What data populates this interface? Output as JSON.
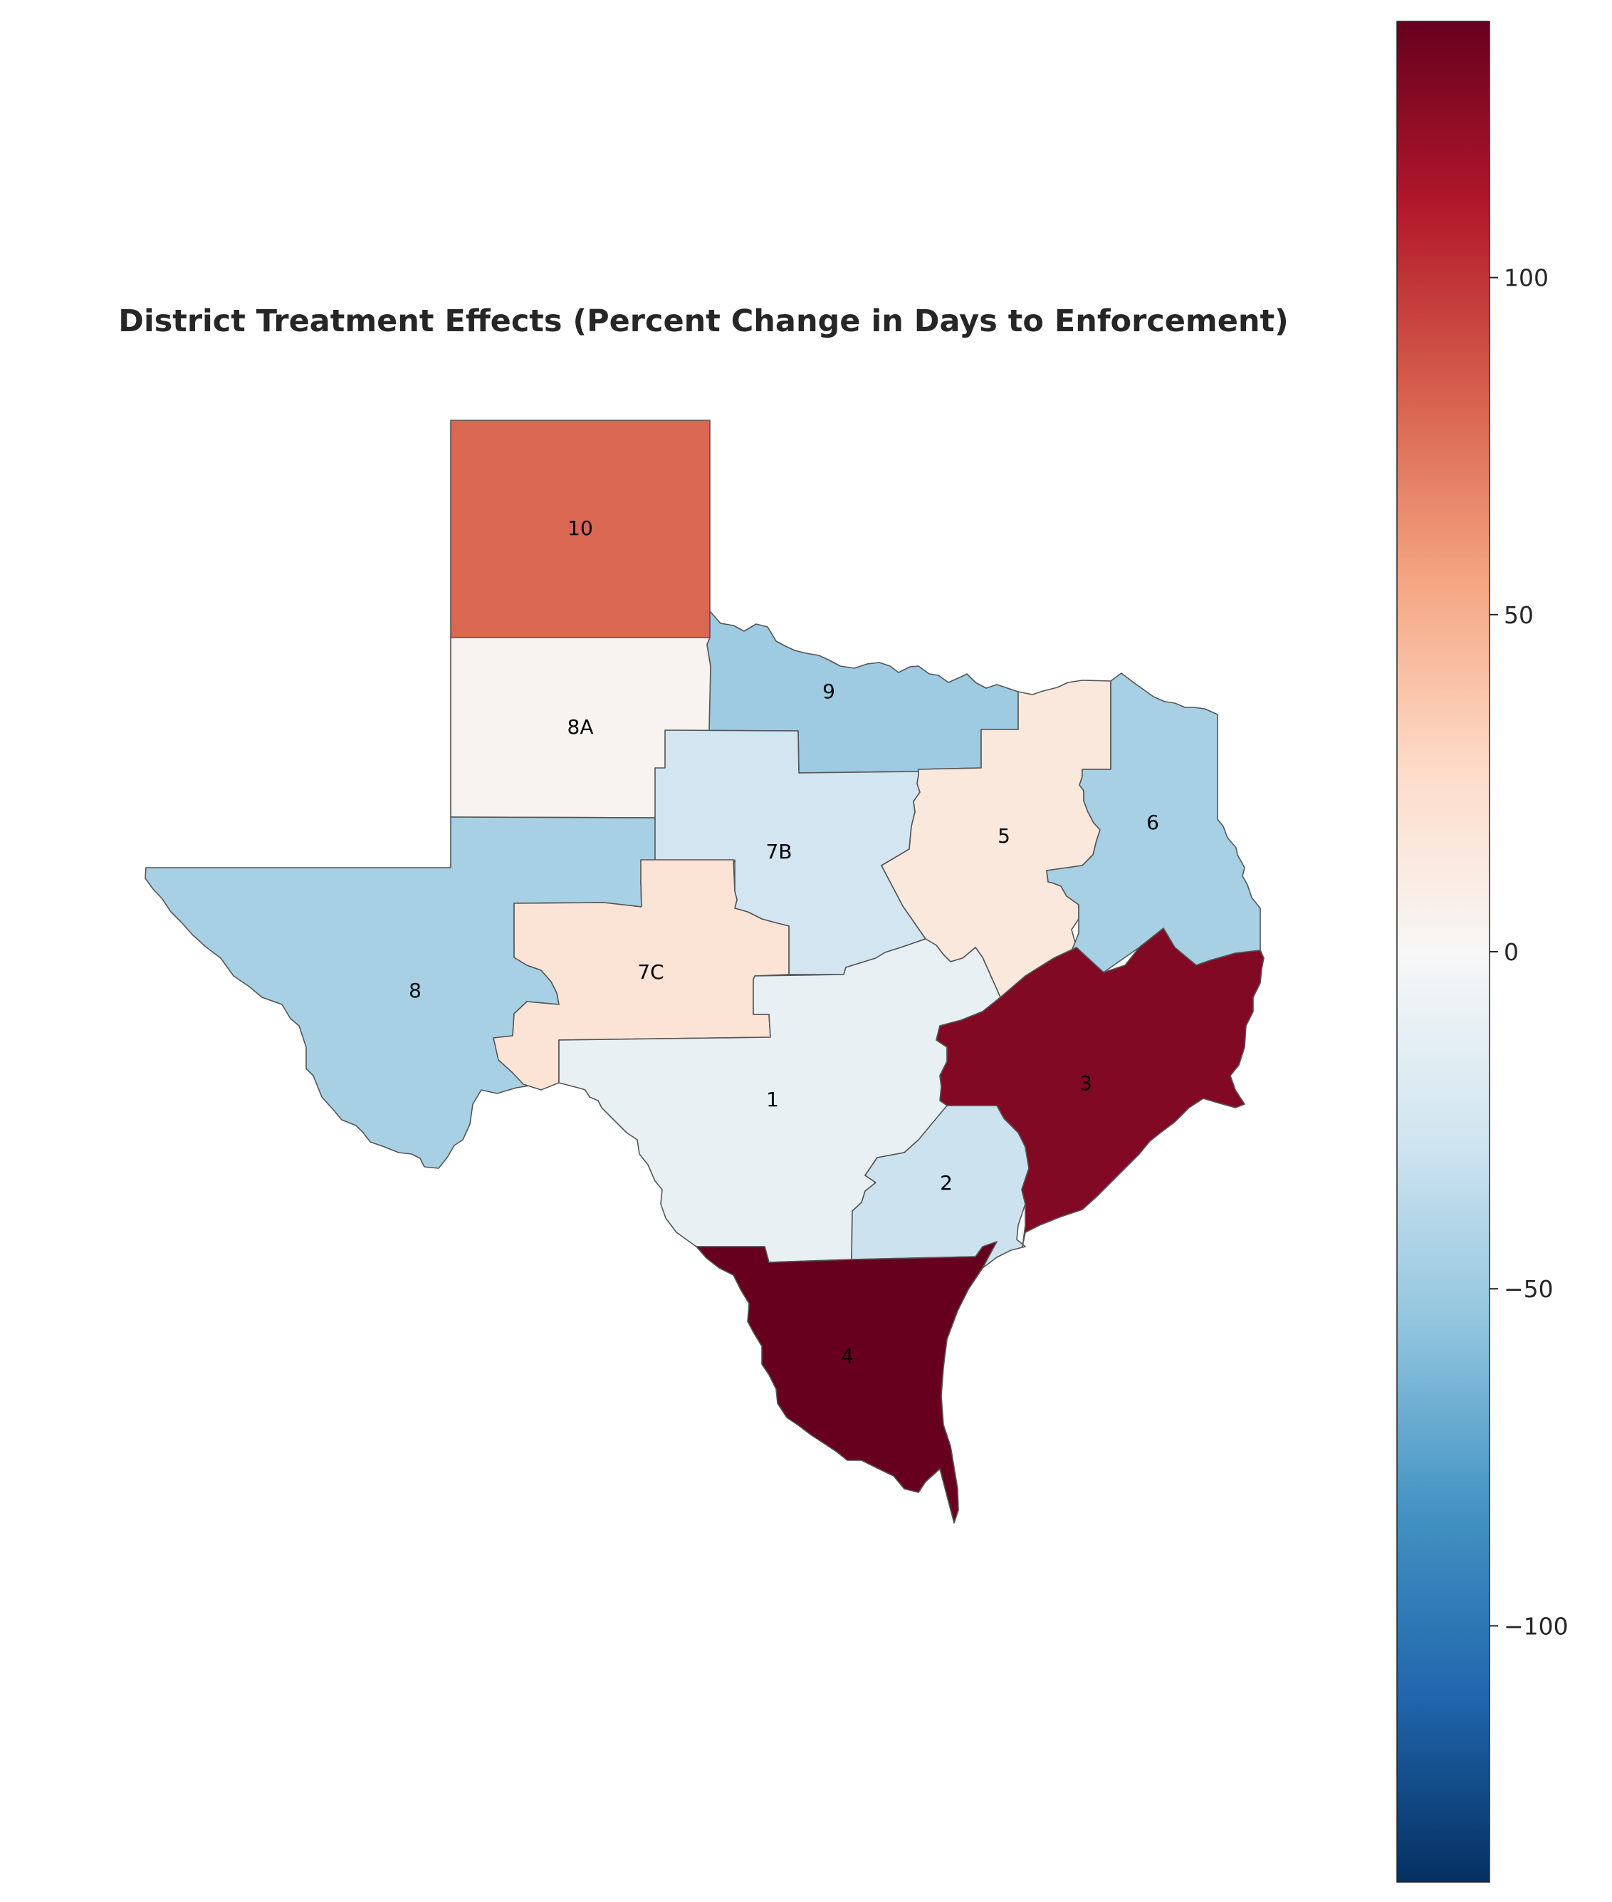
{
  "title": "District Treatment Effects (Percent Change in Days to Enforcement)",
  "colorbar": {
    "colormap": "RdBu_r",
    "min": -138,
    "max": 138,
    "ticks": [
      {
        "value": 100,
        "label": "100"
      },
      {
        "value": 50,
        "label": "50"
      },
      {
        "value": 0,
        "label": "0"
      },
      {
        "value": -50,
        "label": "−50"
      },
      {
        "value": -100,
        "label": "−100"
      }
    ]
  },
  "districts": [
    {
      "id": "10",
      "label": "10",
      "value": 80
    },
    {
      "id": "8A",
      "label": "8A",
      "value": 4
    },
    {
      "id": "9",
      "label": "9",
      "value": -50
    },
    {
      "id": "7B",
      "label": "7B",
      "value": -27
    },
    {
      "id": "5",
      "label": "5",
      "value": 15
    },
    {
      "id": "6",
      "label": "6",
      "value": -46
    },
    {
      "id": "8",
      "label": "8",
      "value": -46
    },
    {
      "id": "7C",
      "label": "7C",
      "value": 19
    },
    {
      "id": "1",
      "label": "1",
      "value": -10
    },
    {
      "id": "2",
      "label": "2",
      "value": -30
    },
    {
      "id": "3",
      "label": "3",
      "value": 128
    },
    {
      "id": "4",
      "label": "4",
      "value": 138
    }
  ]
}
